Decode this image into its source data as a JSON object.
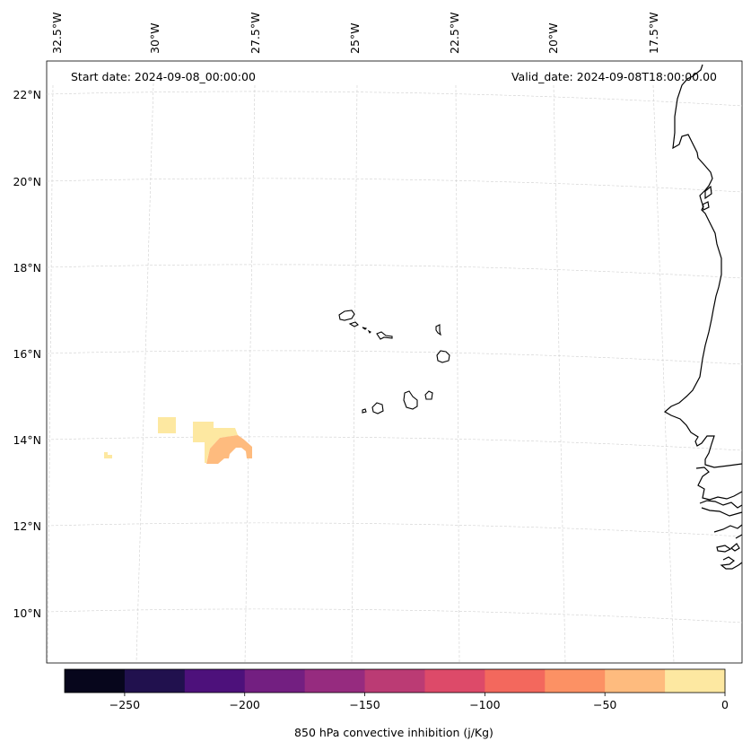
{
  "header": {
    "start_date": "Start date: 2024-09-08_00:00:00",
    "valid_date": "Valid_date: 2024-09-08T18:00:00.00"
  },
  "map": {
    "lon_labels": [
      "32.5°W",
      "30°W",
      "27.5°W",
      "25°W",
      "22.5°W",
      "20°W",
      "17.5°W"
    ],
    "lat_labels": [
      "22°N",
      "20°N",
      "18°N",
      "16°N",
      "14°N",
      "12°N",
      "10°N"
    ],
    "coastline_color": "#000000",
    "grid_color": "#cfcfcf"
  },
  "colorbar": {
    "label": "850 hPa convective inhibition (j/Kg)",
    "ticks": [
      "−250",
      "−200",
      "−150",
      "−100",
      "−50",
      "0"
    ],
    "range": [
      -275,
      0
    ],
    "colors": [
      "#07061c",
      "#21114e",
      "#4d117b",
      "#731f81",
      "#962b7f",
      "#bb3b74",
      "#dd4a69",
      "#f3685d",
      "#fc9164",
      "#febb7e",
      "#fde8a1"
    ]
  }
}
